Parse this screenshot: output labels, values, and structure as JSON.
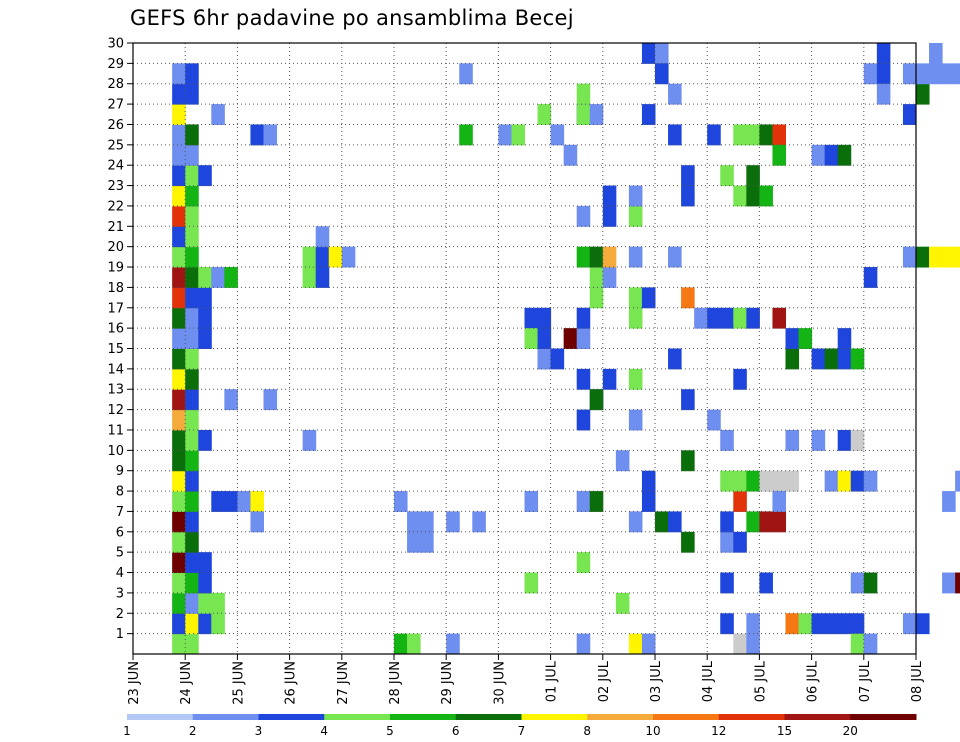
{
  "chart_data": {
    "type": "heatmap",
    "title": "GEFS 6hr padavine po ansamblima Becej",
    "xlabel": "",
    "ylabel": "",
    "x_ticks": [
      "23 JUN",
      "24 JUN",
      "25 JUN",
      "26 JUN",
      "27 JUN",
      "28 JUN",
      "29 JUN",
      "30 JUN",
      "01 JUL",
      "02 JUL",
      "03 JUL",
      "04 JUL",
      "05 JUL",
      "06 JUL",
      "07 JUL",
      "08 JUL"
    ],
    "y_ticks": [
      "1",
      "2",
      "3",
      "4",
      "5",
      "6",
      "7",
      "8",
      "9",
      "10",
      "11",
      "12",
      "13",
      "14",
      "15",
      "16",
      "17",
      "18",
      "19",
      "20",
      "21",
      "22",
      "23",
      "24",
      "25",
      "26",
      "27",
      "28",
      "29",
      "30"
    ],
    "ylim": [
      0,
      30
    ],
    "xlim_steps": [
      0,
      60
    ],
    "grid": true,
    "colorbar": {
      "labels": [
        "1",
        "2",
        "3",
        "4",
        "5",
        "6",
        "7",
        "8",
        "10",
        "12",
        "15",
        "20"
      ],
      "colors": [
        "#b4c8f5",
        "#6e8ef0",
        "#1e46dc",
        "#78e650",
        "#14b414",
        "#0a6e0a",
        "#fff500",
        "#f5aa3c",
        "#f57814",
        "#e1320a",
        "#a01414",
        "#6e0000"
      ]
    },
    "cells": [
      [
        3,
        0,
        3
      ],
      [
        3,
        1,
        3
      ],
      [
        3,
        1,
        2
      ],
      [
        3,
        2,
        4
      ],
      [
        3,
        3,
        3
      ],
      [
        3,
        4,
        11
      ],
      [
        3,
        5,
        3
      ],
      [
        3,
        6,
        11
      ],
      [
        3,
        7,
        3
      ],
      [
        3,
        8,
        6
      ],
      [
        3,
        9,
        5
      ],
      [
        3,
        10,
        5
      ],
      [
        3,
        11,
        7
      ],
      [
        3,
        12,
        10
      ],
      [
        3,
        13,
        6
      ],
      [
        3,
        14,
        5
      ],
      [
        3,
        15,
        1
      ],
      [
        3,
        16,
        5
      ],
      [
        3,
        17,
        9
      ],
      [
        3,
        18,
        10
      ],
      [
        3,
        19,
        3
      ],
      [
        3,
        20,
        2
      ],
      [
        3,
        21,
        9
      ],
      [
        3,
        22,
        6
      ],
      [
        3,
        23,
        2
      ],
      [
        3,
        24,
        1
      ],
      [
        3,
        25,
        1
      ],
      [
        3,
        26,
        6
      ],
      [
        3,
        27,
        2
      ],
      [
        3,
        28,
        1
      ],
      [
        4,
        0,
        3
      ],
      [
        4,
        1,
        6
      ],
      [
        4,
        2,
        1
      ],
      [
        4,
        3,
        4
      ],
      [
        4,
        4,
        2
      ],
      [
        4,
        5,
        5
      ],
      [
        4,
        6,
        2
      ],
      [
        4,
        7,
        4
      ],
      [
        4,
        8,
        2
      ],
      [
        4,
        9,
        4
      ],
      [
        4,
        10,
        3
      ],
      [
        4,
        11,
        3
      ],
      [
        4,
        12,
        2
      ],
      [
        4,
        13,
        5
      ],
      [
        4,
        14,
        3
      ],
      [
        4,
        15,
        1
      ],
      [
        4,
        16,
        1
      ],
      [
        4,
        17,
        2
      ],
      [
        4,
        18,
        5
      ],
      [
        4,
        19,
        4
      ],
      [
        4,
        20,
        3
      ],
      [
        4,
        21,
        3
      ],
      [
        4,
        22,
        4
      ],
      [
        4,
        23,
        3
      ],
      [
        4,
        24,
        1
      ],
      [
        4,
        25,
        5
      ],
      [
        4,
        27,
        2
      ],
      [
        4,
        28,
        2
      ],
      [
        5,
        1,
        2
      ],
      [
        5,
        2,
        3
      ],
      [
        5,
        3,
        2
      ],
      [
        5,
        4,
        2
      ],
      [
        5,
        10,
        2
      ],
      [
        5,
        15,
        2
      ],
      [
        5,
        16,
        2
      ],
      [
        5,
        17,
        2
      ],
      [
        5,
        18,
        3
      ],
      [
        5,
        23,
        2
      ],
      [
        6,
        1,
        3
      ],
      [
        6,
        2,
        3
      ],
      [
        6,
        7,
        2
      ],
      [
        6,
        18,
        1
      ],
      [
        6,
        26,
        1
      ],
      [
        7,
        7,
        2
      ],
      [
        7,
        18,
        4
      ],
      [
        7,
        12,
        1
      ],
      [
        8,
        7,
        1
      ],
      [
        9,
        7,
        6
      ],
      [
        9,
        6,
        1
      ],
      [
        9,
        25,
        3
      ],
      [
        9,
        25,
        2
      ],
      [
        10,
        25,
        1
      ],
      [
        10,
        12,
        1
      ],
      [
        13,
        10,
        1
      ],
      [
        13,
        19,
        3
      ],
      [
        13,
        18,
        3
      ],
      [
        14,
        19,
        2
      ],
      [
        14,
        18,
        2
      ],
      [
        14,
        20,
        1
      ],
      [
        15,
        19,
        6
      ],
      [
        16,
        19,
        1
      ],
      [
        20,
        0,
        4
      ],
      [
        20,
        7,
        1
      ],
      [
        21,
        0,
        3
      ],
      [
        21,
        6,
        1
      ],
      [
        21,
        5,
        1
      ],
      [
        22,
        6,
        1
      ],
      [
        22,
        5,
        1
      ],
      [
        24,
        0,
        1
      ],
      [
        24,
        6,
        1
      ],
      [
        25,
        25,
        4
      ],
      [
        25,
        28,
        1
      ],
      [
        26,
        6,
        1
      ],
      [
        28,
        25,
        1
      ],
      [
        29,
        25,
        3
      ],
      [
        30,
        16,
        2
      ],
      [
        30,
        15,
        3
      ],
      [
        30,
        7,
        1
      ],
      [
        30,
        3,
        3
      ],
      [
        31,
        15,
        3
      ],
      [
        31,
        26,
        3
      ],
      [
        31,
        14,
        1
      ],
      [
        31,
        15,
        3
      ],
      [
        31,
        16,
        2
      ],
      [
        31,
        14,
        1
      ],
      [
        31,
        15,
        2
      ],
      [
        32,
        14,
        2
      ],
      [
        32,
        25,
        1
      ],
      [
        33,
        15,
        11
      ],
      [
        33,
        24,
        1
      ],
      [
        34,
        0,
        1
      ],
      [
        34,
        4,
        3
      ],
      [
        34,
        7,
        1
      ],
      [
        34,
        11,
        2
      ],
      [
        34,
        15,
        1
      ],
      [
        34,
        16,
        2
      ],
      [
        34,
        19,
        4
      ],
      [
        34,
        27,
        3
      ],
      [
        34,
        26,
        2
      ],
      [
        34,
        26,
        3
      ],
      [
        34,
        21,
        1
      ],
      [
        34,
        13,
        2
      ],
      [
        35,
        7,
        5
      ],
      [
        35,
        12,
        2
      ],
      [
        35,
        12,
        5
      ],
      [
        35,
        18,
        3
      ],
      [
        35,
        17,
        3
      ],
      [
        35,
        19,
        5
      ],
      [
        35,
        26,
        1
      ],
      [
        36,
        13,
        2
      ],
      [
        36,
        18,
        1
      ],
      [
        36,
        22,
        2
      ],
      [
        36,
        21,
        2
      ],
      [
        36,
        19,
        7
      ],
      [
        37,
        9,
        1
      ],
      [
        37,
        2,
        3
      ],
      [
        38,
        6,
        1
      ],
      [
        38,
        0,
        6
      ],
      [
        38,
        11,
        1
      ],
      [
        38,
        13,
        3
      ],
      [
        38,
        17,
        3
      ],
      [
        38,
        21,
        3
      ],
      [
        38,
        22,
        1
      ],
      [
        38,
        19,
        1
      ],
      [
        38,
        16,
        3
      ],
      [
        39,
        7,
        2
      ],
      [
        39,
        8,
        2
      ],
      [
        39,
        0,
        1
      ],
      [
        39,
        17,
        2
      ],
      [
        39,
        29,
        2
      ],
      [
        39,
        26,
        2
      ],
      [
        40,
        6,
        5
      ],
      [
        40,
        29,
        1
      ],
      [
        40,
        28,
        2
      ],
      [
        41,
        6,
        2
      ],
      [
        41,
        14,
        2
      ],
      [
        41,
        19,
        1
      ],
      [
        41,
        25,
        2
      ],
      [
        41,
        27,
        1
      ],
      [
        42,
        5,
        5
      ],
      [
        42,
        9,
        5
      ],
      [
        42,
        12,
        2
      ],
      [
        42,
        17,
        8
      ],
      [
        42,
        22,
        2
      ],
      [
        42,
        23,
        2
      ],
      [
        43,
        16,
        1
      ],
      [
        44,
        16,
        2
      ],
      [
        44,
        11,
        1
      ],
      [
        44,
        25,
        2
      ],
      [
        45,
        16,
        2
      ],
      [
        45,
        1,
        2
      ],
      [
        45,
        3,
        2
      ],
      [
        45,
        5,
        1
      ],
      [
        45,
        8,
        3
      ],
      [
        45,
        10,
        1
      ],
      [
        45,
        6,
        2
      ],
      [
        45,
        23,
        3
      ],
      [
        46,
        7,
        9
      ],
      [
        46,
        16,
        3
      ],
      [
        46,
        25,
        3
      ],
      [
        46,
        13,
        2
      ],
      [
        46,
        0,
        12
      ],
      [
        46,
        8,
        3
      ],
      [
        46,
        22,
        3
      ],
      [
        46,
        5,
        2
      ],
      [
        47,
        16,
        2
      ],
      [
        47,
        22,
        5
      ],
      [
        47,
        23,
        5
      ],
      [
        47,
        25,
        3
      ],
      [
        47,
        8,
        4
      ],
      [
        47,
        6,
        4
      ],
      [
        47,
        1,
        1
      ],
      [
        47,
        0,
        1
      ],
      [
        48,
        8,
        12
      ],
      [
        48,
        25,
        5
      ],
      [
        48,
        22,
        4
      ],
      [
        48,
        6,
        10
      ],
      [
        48,
        3,
        2
      ],
      [
        49,
        8,
        12
      ],
      [
        49,
        6,
        10
      ],
      [
        49,
        7,
        1
      ],
      [
        49,
        16,
        10
      ],
      [
        49,
        25,
        9
      ],
      [
        49,
        24,
        4
      ],
      [
        50,
        8,
        12
      ],
      [
        50,
        14,
        5
      ],
      [
        50,
        15,
        2
      ],
      [
        50,
        1,
        8
      ],
      [
        50,
        10,
        1
      ],
      [
        51,
        1,
        3
      ],
      [
        51,
        15,
        4
      ],
      [
        52,
        14,
        2
      ],
      [
        52,
        24,
        1
      ],
      [
        52,
        10,
        1
      ],
      [
        52,
        1,
        2
      ],
      [
        53,
        14,
        5
      ],
      [
        53,
        8,
        1
      ],
      [
        53,
        24,
        2
      ],
      [
        53,
        1,
        2
      ],
      [
        54,
        14,
        2
      ],
      [
        54,
        10,
        2
      ],
      [
        54,
        8,
        6
      ],
      [
        54,
        1,
        2
      ],
      [
        54,
        15,
        2
      ],
      [
        54,
        24,
        5
      ],
      [
        55,
        14,
        4
      ],
      [
        55,
        8,
        2
      ],
      [
        55,
        10,
        12
      ],
      [
        55,
        1,
        2
      ],
      [
        55,
        0,
        3
      ],
      [
        55,
        3,
        1
      ],
      [
        56,
        8,
        1
      ],
      [
        56,
        28,
        1
      ],
      [
        56,
        3,
        5
      ],
      [
        56,
        18,
        2
      ],
      [
        56,
        0,
        1
      ],
      [
        57,
        28,
        2
      ],
      [
        57,
        27,
        1
      ],
      [
        57,
        29,
        2
      ],
      [
        59,
        28,
        1
      ],
      [
        59,
        26,
        2
      ],
      [
        59,
        19,
        1
      ],
      [
        59,
        1,
        1
      ],
      [
        60,
        1,
        2
      ],
      [
        60,
        19,
        5
      ],
      [
        60,
        27,
        5
      ],
      [
        60,
        28,
        1
      ],
      [
        61,
        19,
        6
      ],
      [
        61,
        28,
        1
      ],
      [
        61,
        29,
        1
      ],
      [
        62,
        19,
        6
      ],
      [
        62,
        3,
        1
      ],
      [
        62,
        28,
        1
      ],
      [
        62,
        7,
        1
      ],
      [
        63,
        3,
        11
      ],
      [
        63,
        19,
        6
      ],
      [
        63,
        28,
        1
      ],
      [
        63,
        8,
        1
      ],
      [
        64,
        28,
        4
      ],
      [
        64,
        20,
        9
      ],
      [
        64,
        15,
        1
      ],
      [
        64,
        7,
        2
      ]
    ]
  }
}
